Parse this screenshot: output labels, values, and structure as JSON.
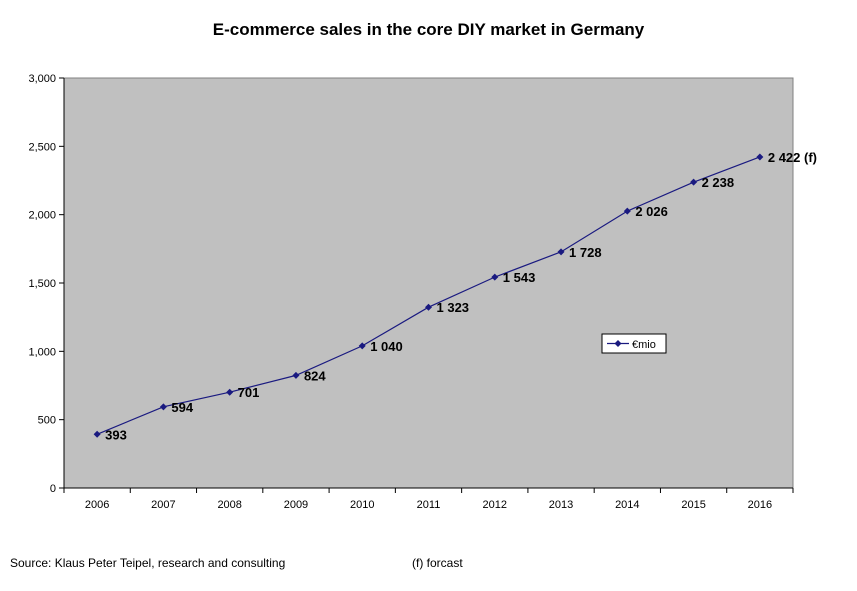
{
  "chart_data": {
    "type": "line",
    "title": "E-commerce sales in the core DIY market in Germany",
    "categories": [
      "2006",
      "2007",
      "2008",
      "2009",
      "2010",
      "2011",
      "2012",
      "2013",
      "2014",
      "2015",
      "2016"
    ],
    "series": [
      {
        "name": "€mio",
        "values": [
          393,
          594,
          701,
          824,
          1040,
          1323,
          1543,
          1728,
          2026,
          2238,
          2422
        ],
        "labels": [
          "393",
          "594",
          "701",
          "824",
          "1 040",
          "1 323",
          "1 543",
          "1 728",
          "2 026",
          "2 238",
          "2 422 (f)"
        ]
      }
    ],
    "ylim": [
      0,
      3000
    ],
    "yticks": [
      0,
      500,
      1000,
      1500,
      2000,
      2500,
      3000
    ],
    "ytick_labels": [
      "0",
      "500",
      "1,000",
      "1,500",
      "2,000",
      "2,500",
      "3,000"
    ],
    "xlabel": "",
    "ylabel": "",
    "legend_position": "right-middle",
    "grid": false,
    "line_color": "#1a1a80",
    "plot_background": "#c0c0c0"
  },
  "footer": {
    "source": "Source: Klaus Peter Teipel, research and consulting",
    "note": "(f) forcast"
  }
}
